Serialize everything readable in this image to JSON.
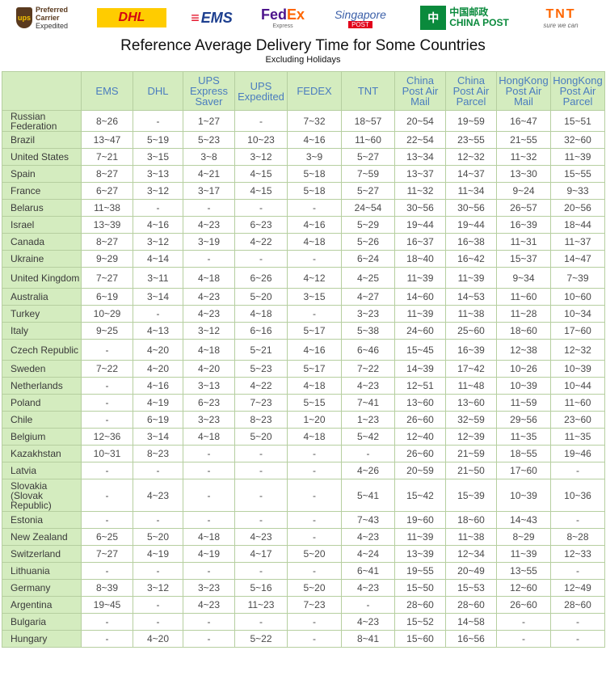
{
  "logos": {
    "ups": {
      "l1": "Preferred",
      "l2": "Carrier",
      "l3": "Expedited"
    },
    "dhl": "DHL",
    "ems": "EMS",
    "fedex": {
      "a": "Fed",
      "b": "Ex",
      "sub": "Express"
    },
    "singapore": {
      "name": "Singapore",
      "sub": "POST"
    },
    "chinapost": {
      "cn": "中国邮政",
      "en": "CHINA POST"
    },
    "tnt": {
      "name": "TNT",
      "sub": "sure we can"
    }
  },
  "title": "Reference Average Delivery Time for Some Countries",
  "subtitle": "Excluding Holidays",
  "columns": [
    "EMS",
    "DHL",
    "UPS Express Saver",
    "UPS Expedited",
    "FEDEX",
    "TNT",
    "China Post Air Mail",
    "China Post Air Parcel",
    "HongKong Post Air Mail",
    "HongKong Post Air Parcel"
  ],
  "rows": [
    {
      "country": "Russian Federation",
      "v": [
        "8~26",
        "-",
        "1~27",
        "-",
        "7~32",
        "18~57",
        "20~54",
        "19~59",
        "16~47",
        "15~51"
      ]
    },
    {
      "country": "Brazil",
      "v": [
        "13~47",
        "5~19",
        "5~23",
        "10~23",
        "4~16",
        "11~60",
        "22~54",
        "23~55",
        "21~55",
        "32~60"
      ]
    },
    {
      "country": "United States",
      "v": [
        "7~21",
        "3~15",
        "3~8",
        "3~12",
        "3~9",
        "5~27",
        "13~34",
        "12~32",
        "11~32",
        "11~39"
      ]
    },
    {
      "country": "Spain",
      "v": [
        "8~27",
        "3~13",
        "4~21",
        "4~15",
        "5~18",
        "7~59",
        "13~37",
        "14~37",
        "13~30",
        "15~55"
      ]
    },
    {
      "country": "France",
      "v": [
        "6~27",
        "3~12",
        "3~17",
        "4~15",
        "5~18",
        "5~27",
        "11~32",
        "11~34",
        "9~24",
        "9~33"
      ]
    },
    {
      "country": "Belarus",
      "v": [
        "11~38",
        "-",
        "-",
        "-",
        "-",
        "24~54",
        "30~56",
        "30~56",
        "26~57",
        "20~56"
      ]
    },
    {
      "country": "Israel",
      "v": [
        "13~39",
        "4~16",
        "4~23",
        "6~23",
        "4~16",
        "5~29",
        "19~44",
        "19~44",
        "16~39",
        "18~44"
      ]
    },
    {
      "country": "Canada",
      "v": [
        "8~27",
        "3~12",
        "3~19",
        "4~22",
        "4~18",
        "5~26",
        "16~37",
        "16~38",
        "11~31",
        "11~37"
      ]
    },
    {
      "country": "Ukraine",
      "v": [
        "9~29",
        "4~14",
        "-",
        "-",
        "-",
        "6~24",
        "18~40",
        "16~42",
        "15~37",
        "14~47"
      ]
    },
    {
      "country": "United Kingdom",
      "v": [
        "7~27",
        "3~11",
        "4~18",
        "6~26",
        "4~12",
        "4~25",
        "11~39",
        "11~39",
        "9~34",
        "7~39"
      ]
    },
    {
      "country": "Australia",
      "v": [
        "6~19",
        "3~14",
        "4~23",
        "5~20",
        "3~15",
        "4~27",
        "14~60",
        "14~53",
        "11~60",
        "10~60"
      ]
    },
    {
      "country": "Turkey",
      "v": [
        "10~29",
        "-",
        "4~23",
        "4~18",
        "-",
        "3~23",
        "11~39",
        "11~38",
        "11~28",
        "10~34"
      ]
    },
    {
      "country": "Italy",
      "v": [
        "9~25",
        "4~13",
        "3~12",
        "6~16",
        "5~17",
        "5~38",
        "24~60",
        "25~60",
        "18~60",
        "17~60"
      ]
    },
    {
      "country": "Czech Republic",
      "v": [
        "-",
        "4~20",
        "4~18",
        "5~21",
        "4~16",
        "6~46",
        "15~45",
        "16~39",
        "12~38",
        "12~32"
      ]
    },
    {
      "country": "Sweden",
      "v": [
        "7~22",
        "4~20",
        "4~20",
        "5~23",
        "5~17",
        "7~22",
        "14~39",
        "17~42",
        "10~26",
        "10~39"
      ]
    },
    {
      "country": "Netherlands",
      "v": [
        "-",
        "4~16",
        "3~13",
        "4~22",
        "4~18",
        "4~23",
        "12~51",
        "11~48",
        "10~39",
        "10~44"
      ]
    },
    {
      "country": "Poland",
      "v": [
        "-",
        "4~19",
        "6~23",
        "7~23",
        "5~15",
        "7~41",
        "13~60",
        "13~60",
        "11~59",
        "11~60"
      ]
    },
    {
      "country": "Chile",
      "v": [
        "-",
        "6~19",
        "3~23",
        "8~23",
        "1~20",
        "1~23",
        "26~60",
        "32~59",
        "29~56",
        "23~60"
      ]
    },
    {
      "country": "Belgium",
      "v": [
        "12~36",
        "3~14",
        "4~18",
        "5~20",
        "4~18",
        "5~42",
        "12~40",
        "12~39",
        "11~35",
        "11~35"
      ]
    },
    {
      "country": "Kazakhstan",
      "v": [
        "10~31",
        "8~23",
        "-",
        "-",
        "-",
        "-",
        "26~60",
        "21~59",
        "18~55",
        "19~46"
      ]
    },
    {
      "country": "Latvia",
      "v": [
        "-",
        "-",
        "-",
        "-",
        "-",
        "4~26",
        "20~59",
        "21~50",
        "17~60",
        "-"
      ]
    },
    {
      "country": "Slovakia (Slovak Republic)",
      "v": [
        "-",
        "4~23",
        "-",
        "-",
        "-",
        "5~41",
        "15~42",
        "15~39",
        "10~39",
        "10~36"
      ]
    },
    {
      "country": "Estonia",
      "v": [
        "-",
        "-",
        "-",
        "-",
        "-",
        "7~43",
        "19~60",
        "18~60",
        "14~43",
        "-"
      ]
    },
    {
      "country": "New Zealand",
      "v": [
        "6~25",
        "5~20",
        "4~18",
        "4~23",
        "-",
        "4~23",
        "11~39",
        "11~38",
        "8~29",
        "8~28"
      ]
    },
    {
      "country": "Switzerland",
      "v": [
        "7~27",
        "4~19",
        "4~19",
        "4~17",
        "5~20",
        "4~24",
        "13~39",
        "12~34",
        "11~39",
        "12~33"
      ]
    },
    {
      "country": "Lithuania",
      "v": [
        "-",
        "-",
        "-",
        "-",
        "-",
        "6~41",
        "19~55",
        "20~49",
        "13~55",
        "-"
      ]
    },
    {
      "country": "Germany",
      "v": [
        "8~39",
        "3~12",
        "3~23",
        "5~16",
        "5~20",
        "4~23",
        "15~50",
        "15~53",
        "12~60",
        "12~49"
      ]
    },
    {
      "country": "Argentina",
      "v": [
        "19~45",
        "-",
        "4~23",
        "11~23",
        "7~23",
        "-",
        "28~60",
        "28~60",
        "26~60",
        "28~60"
      ]
    },
    {
      "country": "Bulgaria",
      "v": [
        "-",
        "-",
        "-",
        "-",
        "-",
        "4~23",
        "15~52",
        "14~58",
        "-",
        "-"
      ]
    },
    {
      "country": "Hungary",
      "v": [
        "-",
        "4~20",
        "-",
        "5~22",
        "-",
        "8~41",
        "15~60",
        "16~56",
        "-",
        "-"
      ]
    }
  ]
}
